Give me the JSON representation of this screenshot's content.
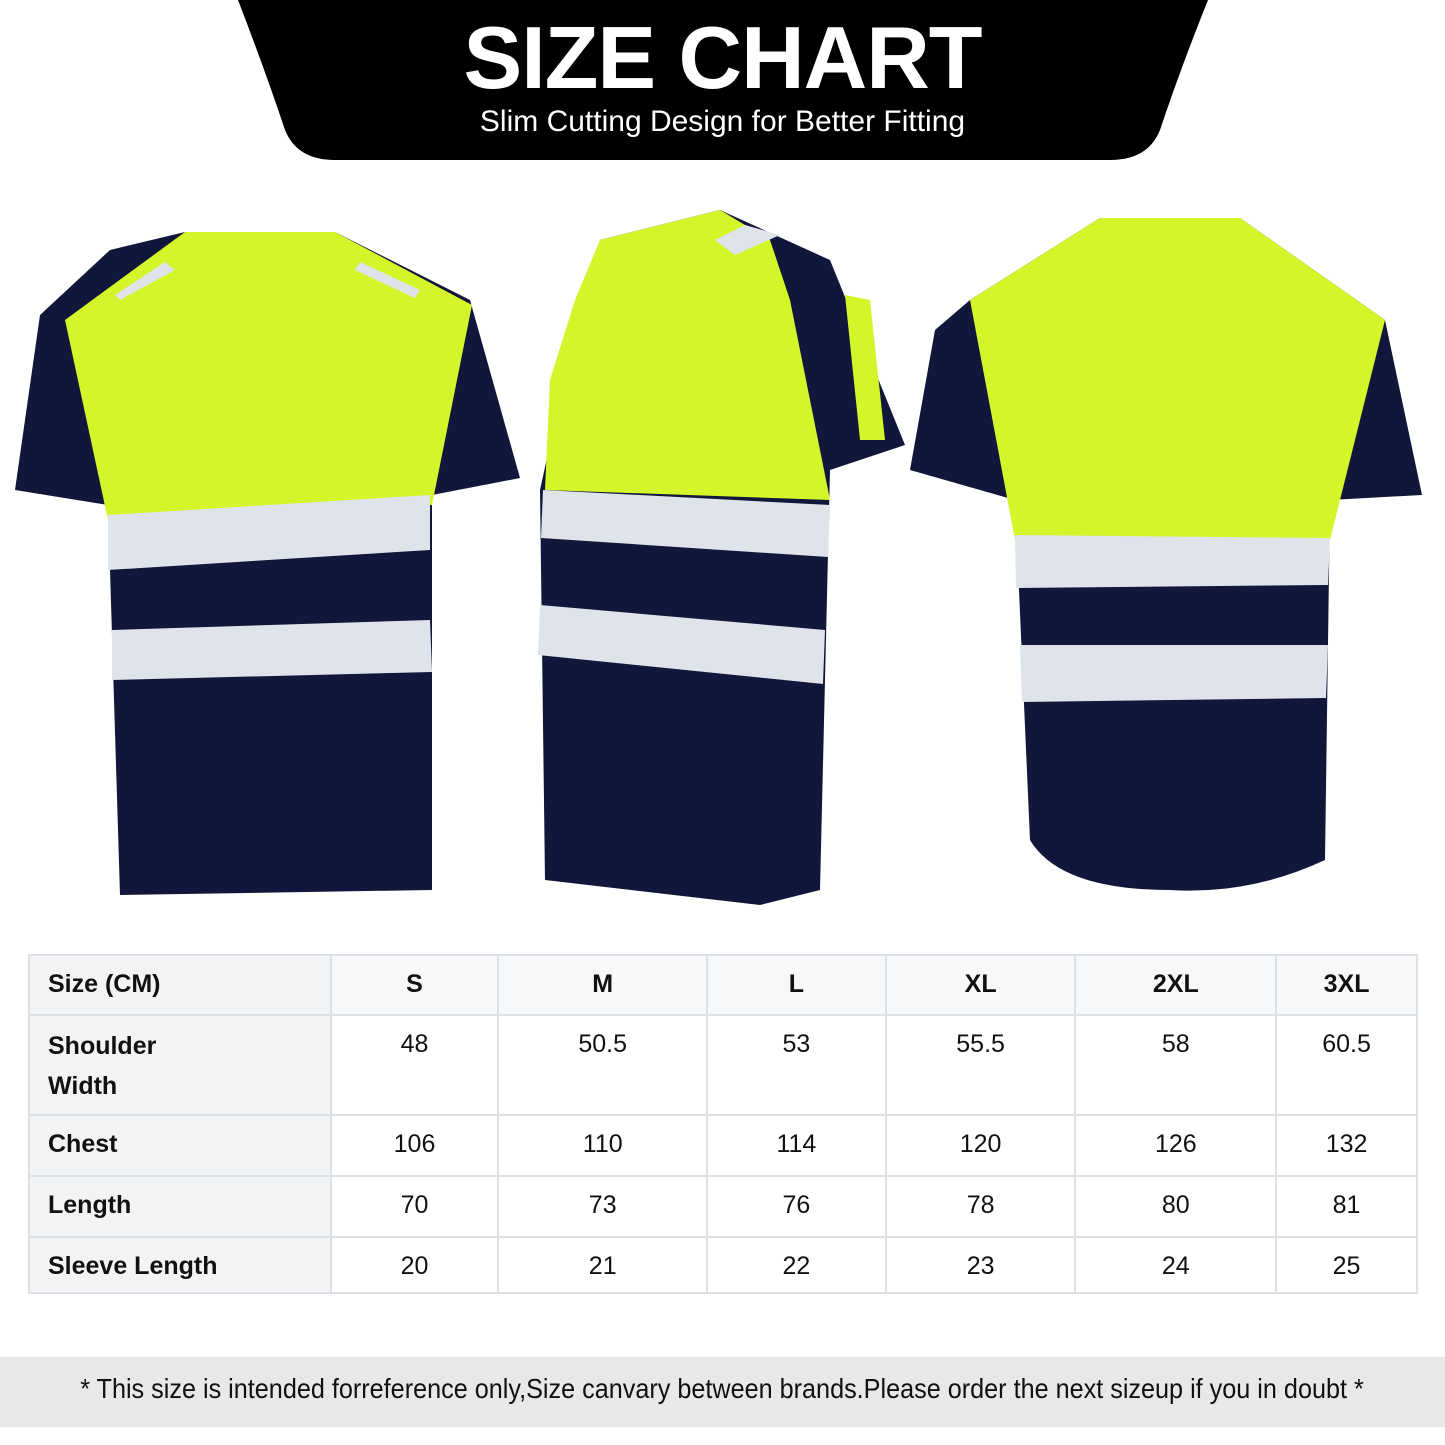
{
  "header": {
    "title": "SIZE CHART",
    "subtitle": "Slim Cutting Design for Better Fitting"
  },
  "colors": {
    "banner": "#000000",
    "hi_vis_yellow": "#d4f52a",
    "navy": "#11173a",
    "reflective_silver": "#dfe3ea",
    "table_border": "#dcdfe3",
    "footer_bg": "#e8e8e8"
  },
  "images": [
    "shirt-front",
    "shirt-side",
    "shirt-back"
  ],
  "table": {
    "columns": [
      "Size (CM)",
      "S",
      "M",
      "L",
      "XL",
      "2XL",
      "3XL"
    ],
    "rows": [
      {
        "label_lines": [
          "Shoulder",
          "Width"
        ],
        "values": [
          "48",
          "50.5",
          "53",
          "55.5",
          "58",
          "60.5"
        ]
      },
      {
        "label_lines": [
          "Chest"
        ],
        "values": [
          "106",
          "110",
          "114",
          "120",
          "126",
          "132"
        ]
      },
      {
        "label_lines": [
          "Length"
        ],
        "values": [
          "70",
          "73",
          "76",
          "78",
          "80",
          "81"
        ]
      },
      {
        "label_lines": [
          "Sleeve Length"
        ],
        "values": [
          "20",
          "21",
          "22",
          "23",
          "24",
          "25"
        ]
      }
    ]
  },
  "footer": {
    "note": "* This size is intended forreference only,Size canvary between brands.Please order the next sizeup if you in doubt *"
  }
}
